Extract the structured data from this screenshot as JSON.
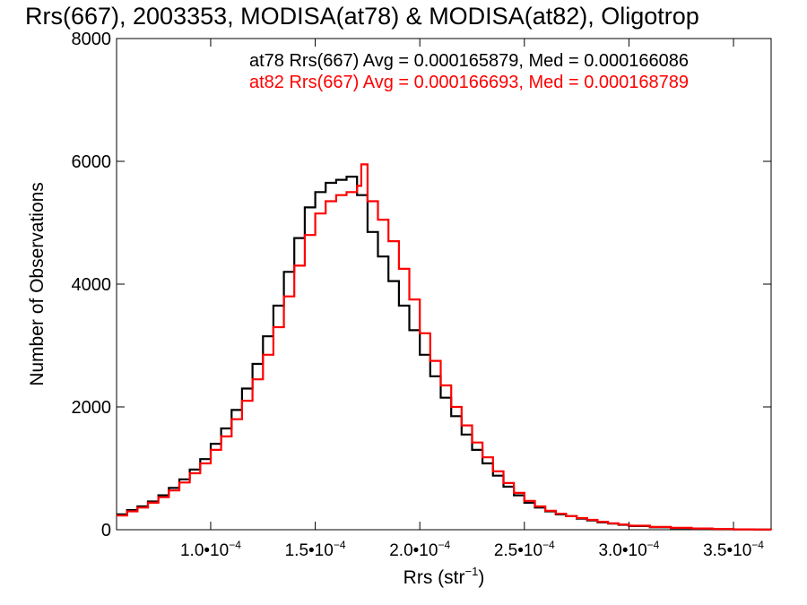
{
  "chart_data": {
    "type": "line",
    "title": "Rrs(667), 2003353, MODISA(at78) & MODISA(at82), Oligotrop",
    "xlabel": "Rrs (str",
    "xlabel_sup": "−1",
    "xlabel_end": ")",
    "ylabel": "Number of Observations",
    "xlim": [
      5.5e-05,
      0.000368
    ],
    "ylim": [
      0,
      8000
    ],
    "x_ticks": [
      {
        "value": 0.0001,
        "mant": "1.0",
        "exp": "−4"
      },
      {
        "value": 0.00015,
        "mant": "1.5",
        "exp": "−4"
      },
      {
        "value": 0.0002,
        "mant": "2.0",
        "exp": "−4"
      },
      {
        "value": 0.00025,
        "mant": "2.5",
        "exp": "−4"
      },
      {
        "value": 0.0003,
        "mant": "3.0",
        "exp": "−4"
      },
      {
        "value": 0.00035,
        "mant": "3.5",
        "exp": "−4"
      }
    ],
    "y_ticks": [
      {
        "value": 0,
        "label": "0"
      },
      {
        "value": 2000,
        "label": "2000"
      },
      {
        "value": 4000,
        "label": "4000"
      },
      {
        "value": 6000,
        "label": "6000"
      },
      {
        "value": 8000,
        "label": "8000"
      }
    ],
    "grid": false,
    "series": [
      {
        "name": "at78",
        "color": "#000000",
        "annotation": "at78 Rrs(667) Avg = 0.000165879, Med = 0.000166086",
        "x": [
          5.5e-05,
          6e-05,
          6.5e-05,
          7e-05,
          7.5e-05,
          8e-05,
          8.5e-05,
          9e-05,
          9.5e-05,
          0.0001,
          0.000105,
          0.00011,
          0.000115,
          0.00012,
          0.000125,
          0.00013,
          0.000135,
          0.00014,
          0.000145,
          0.00015,
          0.000155,
          0.00016,
          0.000165,
          0.00017,
          0.000175,
          0.00018,
          0.000185,
          0.00019,
          0.000195,
          0.0002,
          0.000205,
          0.00021,
          0.000215,
          0.00022,
          0.000225,
          0.00023,
          0.000235,
          0.00024,
          0.000245,
          0.00025,
          0.000255,
          0.00026,
          0.000265,
          0.00027,
          0.000275,
          0.00028,
          0.000285,
          0.00029,
          0.000295,
          0.0003,
          0.00031,
          0.00032,
          0.00033,
          0.00034,
          0.00035,
          0.00036,
          0.000368
        ],
        "y": [
          250,
          320,
          380,
          460,
          560,
          680,
          820,
          980,
          1150,
          1400,
          1650,
          1950,
          2300,
          2700,
          3150,
          3650,
          4200,
          4750,
          5250,
          5500,
          5650,
          5700,
          5750,
          5450,
          4850,
          4450,
          4050,
          3650,
          3250,
          2850,
          2500,
          2150,
          1850,
          1550,
          1300,
          1080,
          880,
          700,
          560,
          440,
          360,
          300,
          250,
          220,
          180,
          150,
          120,
          100,
          80,
          60,
          40,
          25,
          15,
          8,
          4,
          2,
          1
        ]
      },
      {
        "name": "at82",
        "color": "#ff0000",
        "annotation": "at82 Rrs(667) Avg = 0.000166693, Med = 0.000168789",
        "x": [
          5.5e-05,
          6e-05,
          6.5e-05,
          7e-05,
          7.5e-05,
          8e-05,
          8.5e-05,
          9e-05,
          9.5e-05,
          0.0001,
          0.000105,
          0.00011,
          0.000115,
          0.00012,
          0.000125,
          0.00013,
          0.000135,
          0.00014,
          0.000145,
          0.00015,
          0.000155,
          0.00016,
          0.000165,
          0.00017,
          0.000172,
          0.000175,
          0.00018,
          0.000185,
          0.00019,
          0.000195,
          0.0002,
          0.000205,
          0.00021,
          0.000215,
          0.00022,
          0.000225,
          0.00023,
          0.000235,
          0.00024,
          0.000245,
          0.00025,
          0.000255,
          0.00026,
          0.000265,
          0.00027,
          0.000275,
          0.00028,
          0.000285,
          0.00029,
          0.000295,
          0.0003,
          0.00031,
          0.00032,
          0.00033,
          0.00034,
          0.00035,
          0.00036,
          0.000368
        ],
        "y": [
          230,
          300,
          360,
          440,
          530,
          640,
          770,
          920,
          1080,
          1300,
          1520,
          1800,
          2100,
          2450,
          2850,
          3300,
          3800,
          4300,
          4800,
          5150,
          5350,
          5450,
          5500,
          5600,
          5950,
          5350,
          5050,
          4700,
          4250,
          3750,
          3200,
          2750,
          2350,
          2000,
          1700,
          1420,
          1180,
          950,
          760,
          600,
          470,
          380,
          310,
          260,
          220,
          190,
          160,
          130,
          105,
          85,
          65,
          45,
          30,
          20,
          12,
          6,
          3,
          2
        ]
      }
    ]
  }
}
